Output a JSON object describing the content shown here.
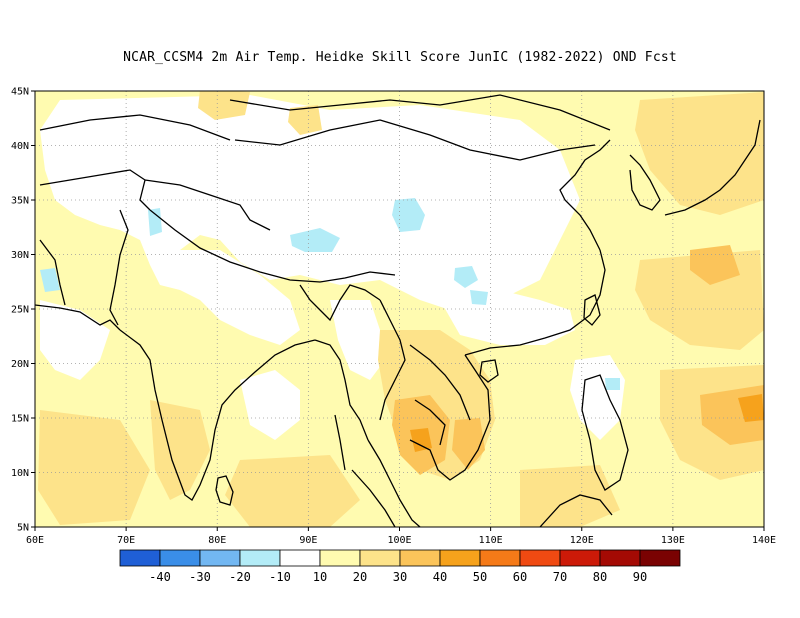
{
  "title": "NCAR_CCSM4  2m Air Temp. Heidke Skill Score JunIC (1982-2022) OND Fcst",
  "map": {
    "lon_range": [
      60,
      140
    ],
    "lat_range": [
      5,
      45
    ],
    "x_tick_labels": [
      "60E",
      "70E",
      "80E",
      "90E",
      "100E",
      "110E",
      "120E",
      "130E",
      "140E"
    ],
    "y_tick_labels": [
      "5N",
      "10N",
      "15N",
      "20N",
      "25N",
      "30N",
      "35N",
      "40N",
      "45N"
    ],
    "grid": "dotted"
  },
  "colorbar": {
    "colors": [
      "#1f5fd6",
      "#3a8ee8",
      "#72b7f2",
      "#b3ecf7",
      "#ffffff",
      "#fffbb0",
      "#fde38a",
      "#fbc45a",
      "#f6a21c",
      "#f57a18",
      "#f04a12",
      "#cc1a08",
      "#a40a04",
      "#7a0202"
    ],
    "labels": [
      "-40",
      "-30",
      "-20",
      "-10",
      "10",
      "20",
      "30",
      "40",
      "50",
      "60",
      "70",
      "80",
      "90"
    ]
  }
}
